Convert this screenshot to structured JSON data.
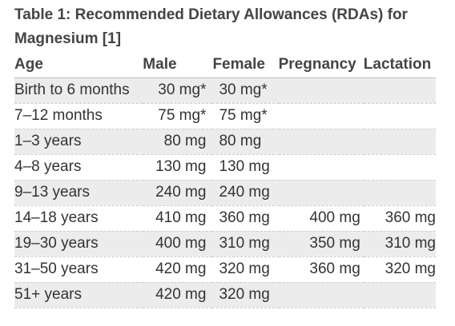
{
  "caption_line1": "Table 1: Recommended Dietary Allowances (RDAs) for",
  "caption_line2": "Magnesium [1]",
  "headers": {
    "age": "Age",
    "male": "Male",
    "female": "Female",
    "pregnancy": "Pregnancy",
    "lactation": "Lactation"
  },
  "rows": [
    {
      "age": "Birth to 6 months",
      "male": "30 mg*",
      "female": "30 mg*",
      "pregnancy": "",
      "lactation": ""
    },
    {
      "age": "7–12 months",
      "male": "75 mg*",
      "female": "75 mg*",
      "pregnancy": "",
      "lactation": ""
    },
    {
      "age": "1–3 years",
      "male": "80 mg",
      "female": "80 mg",
      "pregnancy": "",
      "lactation": ""
    },
    {
      "age": "4–8 years",
      "male": "130 mg",
      "female": "130 mg",
      "pregnancy": "",
      "lactation": ""
    },
    {
      "age": "9–13 years",
      "male": "240 mg",
      "female": "240 mg",
      "pregnancy": "",
      "lactation": ""
    },
    {
      "age": "14–18 years",
      "male": "410 mg",
      "female": "360 mg",
      "pregnancy": "400 mg",
      "lactation": "360 mg"
    },
    {
      "age": "19–30 years",
      "male": "400 mg",
      "female": "310 mg",
      "pregnancy": "350 mg",
      "lactation": "310 mg"
    },
    {
      "age": "31–50 years",
      "male": "420 mg",
      "female": "320 mg",
      "pregnancy": "360 mg",
      "lactation": "320 mg"
    },
    {
      "age": "51+ years",
      "male": "420 mg",
      "female": "320 mg",
      "pregnancy": "",
      "lactation": ""
    }
  ],
  "colors": {
    "shade": "#ececec",
    "text": "#333333",
    "heading": "#444444"
  }
}
